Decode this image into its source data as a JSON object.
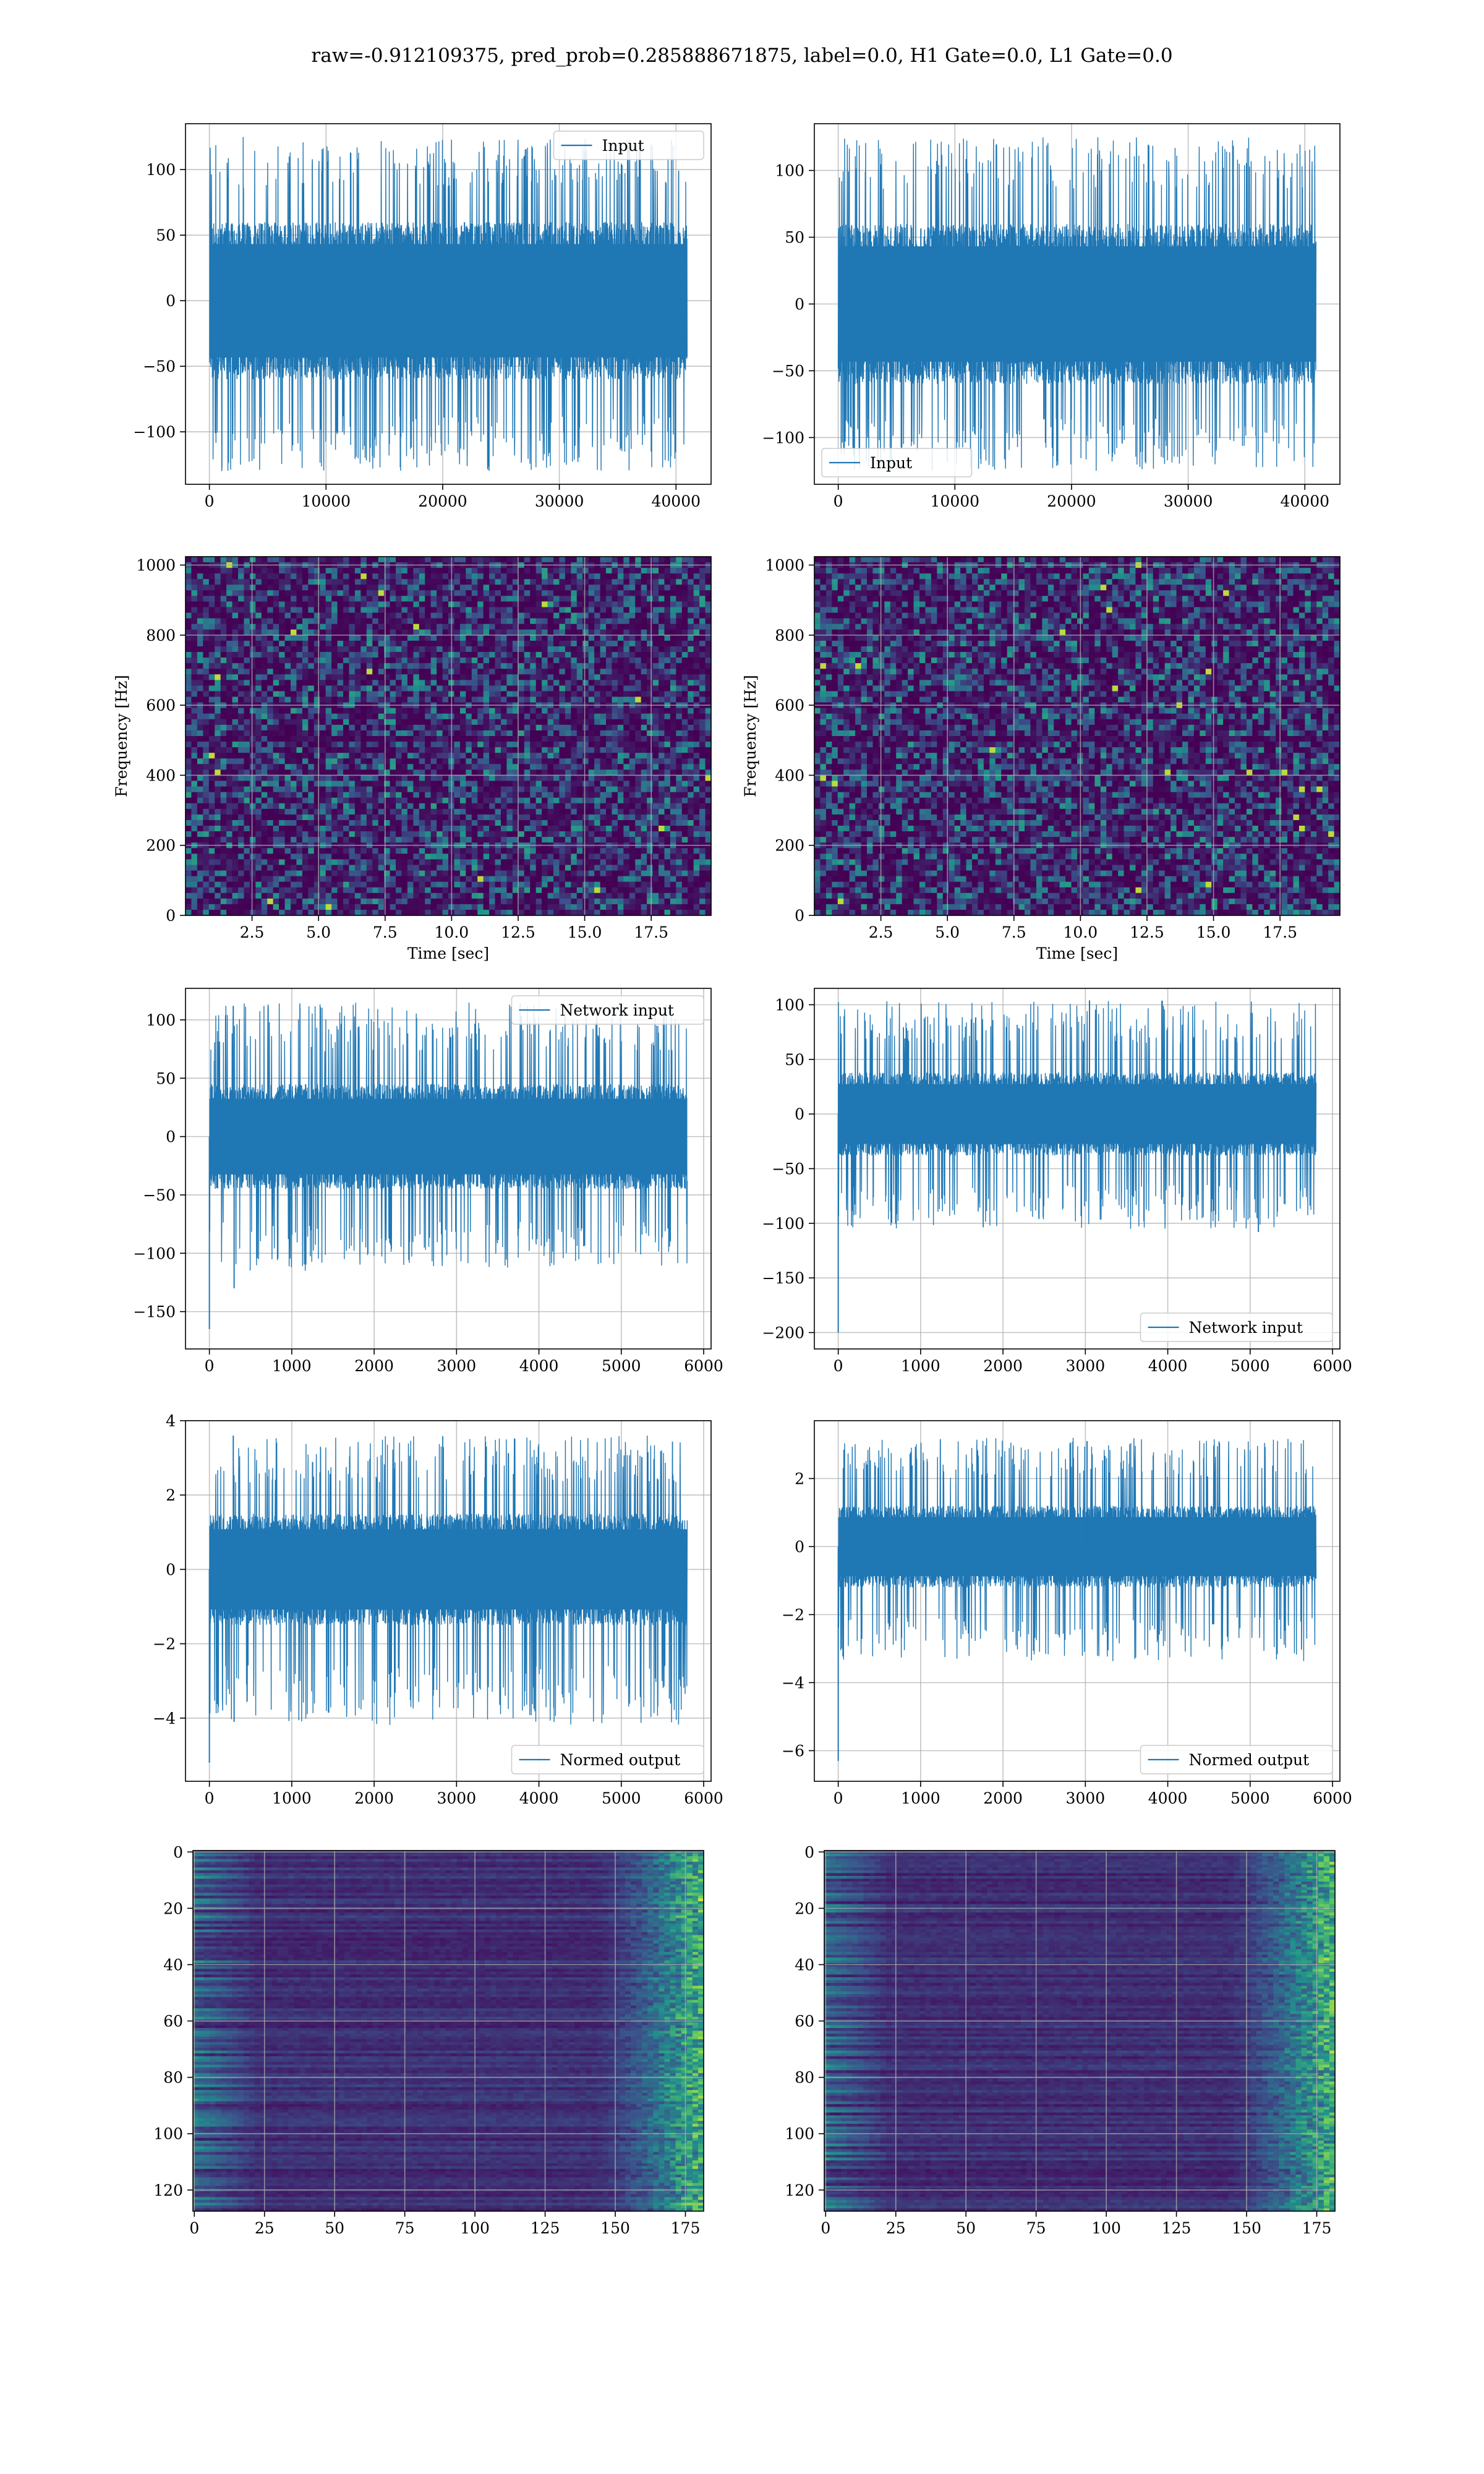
{
  "figure": {
    "title": "raw=-0.912109375, pred_prob=0.285888671875, label=0.0, H1 Gate=0.0, L1 Gate=0.0",
    "colors": {
      "line": "#1f77b4",
      "grid": "#b0b0b0",
      "axes": "#000000",
      "viridis_dark": "#440154",
      "viridis_mid": "#21918c",
      "viridis_bright": "#fde725"
    }
  },
  "chart_data": [
    {
      "id": "r1-left",
      "type": "line",
      "noise_rendering": true,
      "title": "",
      "xlabel": "",
      "ylabel": "",
      "series": [
        {
          "name": "Input",
          "x": [
            0,
            40959
          ],
          "ymin": -130,
          "ymax": 125,
          "typical_min": -60,
          "typical_max": 60,
          "seed": 11
        }
      ],
      "xlim": [
        -2048,
        43008
      ],
      "ylim": [
        -140,
        135
      ],
      "xticks": [
        0,
        10000,
        20000,
        30000,
        40000
      ],
      "yticks": [
        -100,
        -50,
        0,
        50,
        100
      ],
      "grid": true,
      "legend": {
        "loc": "upper right"
      }
    },
    {
      "id": "r1-right",
      "type": "line",
      "noise_rendering": true,
      "title": "",
      "xlabel": "",
      "ylabel": "",
      "series": [
        {
          "name": "Input",
          "x": [
            0,
            40959
          ],
          "ymin": -125,
          "ymax": 125,
          "typical_min": -60,
          "typical_max": 60,
          "seed": 23
        }
      ],
      "xlim": [
        -2048,
        43008
      ],
      "ylim": [
        -135,
        135
      ],
      "xticks": [
        0,
        10000,
        20000,
        30000,
        40000
      ],
      "yticks": [
        -100,
        -50,
        0,
        50,
        100
      ],
      "grid": true,
      "legend": {
        "loc": "lower left"
      }
    },
    {
      "id": "r2-left",
      "type": "heatmap",
      "kind": "spectrogram",
      "title": "",
      "xlabel": "Time [sec]",
      "ylabel": "Frequency [Hz]",
      "xlim": [
        0,
        19.75
      ],
      "ylim": [
        0,
        1024
      ],
      "xticks": [
        2.5,
        5,
        7.5,
        10,
        12.5,
        15,
        17.5
      ],
      "xtick_labels": [
        "2.5",
        "5.0",
        "7.5",
        "10.0",
        "12.5",
        "15.0",
        "17.5"
      ],
      "yticks": [
        0,
        200,
        400,
        600,
        800,
        1000
      ],
      "colormap": "viridis",
      "grid": true,
      "seed": 101
    },
    {
      "id": "r2-right",
      "type": "heatmap",
      "kind": "spectrogram",
      "title": "",
      "xlabel": "Time [sec]",
      "ylabel": "Frequency [Hz]",
      "xlim": [
        0,
        19.75
      ],
      "ylim": [
        0,
        1024
      ],
      "xticks": [
        2.5,
        5,
        7.5,
        10,
        12.5,
        15,
        17.5
      ],
      "xtick_labels": [
        "2.5",
        "5.0",
        "7.5",
        "10.0",
        "12.5",
        "15.0",
        "17.5"
      ],
      "yticks": [
        0,
        200,
        400,
        600,
        800,
        1000
      ],
      "colormap": "viridis",
      "grid": true,
      "seed": 202
    },
    {
      "id": "r3-left",
      "type": "line",
      "noise_rendering": true,
      "title": "",
      "xlabel": "",
      "ylabel": "",
      "series": [
        {
          "name": "Network input",
          "x": [
            0,
            5800
          ],
          "ymin": -115,
          "ymax": 115,
          "typical_min": -45,
          "typical_max": 45,
          "seed": 31,
          "spikes": [
            [
              0,
              -165
            ],
            [
              60,
              65
            ],
            [
              300,
              -130
            ],
            [
              290,
              112
            ]
          ]
        }
      ],
      "xlim": [
        -290,
        6090
      ],
      "ylim": [
        -182,
        127
      ],
      "xticks": [
        0,
        1000,
        2000,
        3000,
        4000,
        5000,
        6000
      ],
      "yticks": [
        -150,
        -100,
        -50,
        0,
        50,
        100
      ],
      "grid": true,
      "legend": {
        "loc": "upper right"
      }
    },
    {
      "id": "r3-right",
      "type": "line",
      "noise_rendering": true,
      "title": "",
      "xlabel": "",
      "ylabel": "",
      "series": [
        {
          "name": "Network input",
          "x": [
            0,
            5800
          ],
          "ymin": -105,
          "ymax": 104,
          "typical_min": -38,
          "typical_max": 38,
          "seed": 37,
          "spikes": [
            [
              0,
              -200
            ],
            [
              3050,
              104
            ],
            [
              5100,
              -108
            ]
          ]
        }
      ],
      "xlim": [
        -290,
        6090
      ],
      "ylim": [
        -215,
        115
      ],
      "xticks": [
        0,
        1000,
        2000,
        3000,
        4000,
        5000,
        6000
      ],
      "yticks": [
        -200,
        -150,
        -100,
        -50,
        0,
        50,
        100
      ],
      "grid": true,
      "legend": {
        "loc": "lower right"
      }
    },
    {
      "id": "r4-left",
      "type": "line",
      "noise_rendering": true,
      "title": "",
      "xlabel": "",
      "ylabel": "",
      "series": [
        {
          "name": "Normed output",
          "x": [
            0,
            5800
          ],
          "ymin": -4.2,
          "ymax": 3.6,
          "typical_min": -1.5,
          "typical_max": 1.5,
          "seed": 41,
          "spikes": [
            [
              0,
              -5.2
            ],
            [
              300,
              -4.1
            ],
            [
              290,
              3.6
            ]
          ]
        }
      ],
      "xlim": [
        -290,
        6090
      ],
      "ylim": [
        -5.7,
        4.0
      ],
      "xticks": [
        0,
        1000,
        2000,
        3000,
        4000,
        5000,
        6000
      ],
      "yticks": [
        -4,
        -2,
        0,
        2,
        4
      ],
      "grid": true,
      "legend": {
        "loc": "lower right"
      }
    },
    {
      "id": "r4-right",
      "type": "line",
      "noise_rendering": true,
      "title": "",
      "xlabel": "",
      "ylabel": "",
      "series": [
        {
          "name": "Normed output",
          "x": [
            0,
            5800
          ],
          "ymin": -3.4,
          "ymax": 3.2,
          "typical_min": -1.2,
          "typical_max": 1.2,
          "seed": 43,
          "spikes": [
            [
              0,
              -6.3
            ],
            [
              3020,
              3.1
            ]
          ]
        }
      ],
      "xlim": [
        -290,
        6090
      ],
      "ylim": [
        -6.9,
        3.7
      ],
      "xticks": [
        0,
        1000,
        2000,
        3000,
        4000,
        5000,
        6000
      ],
      "yticks": [
        -6,
        -4,
        -2,
        0,
        2
      ],
      "grid": true,
      "legend": {
        "loc": "lower right"
      }
    },
    {
      "id": "r5-left",
      "type": "heatmap",
      "kind": "feature-map",
      "title": "",
      "xlabel": "",
      "ylabel": "",
      "xlim": [
        -0.5,
        181.5
      ],
      "ylim": [
        127.5,
        -0.5
      ],
      "xticks": [
        0,
        25,
        50,
        75,
        100,
        125,
        150,
        175
      ],
      "yticks": [
        0,
        20,
        40,
        60,
        80,
        100,
        120
      ],
      "colormap": "viridis",
      "grid": true,
      "seed": 303
    },
    {
      "id": "r5-right",
      "type": "heatmap",
      "kind": "feature-map",
      "title": "",
      "xlabel": "",
      "ylabel": "",
      "xlim": [
        -0.5,
        181.5
      ],
      "ylim": [
        127.5,
        -0.5
      ],
      "xticks": [
        0,
        25,
        50,
        75,
        100,
        125,
        150,
        175
      ],
      "yticks": [
        0,
        20,
        40,
        60,
        80,
        100,
        120
      ],
      "colormap": "viridis",
      "grid": true,
      "seed": 404
    }
  ]
}
